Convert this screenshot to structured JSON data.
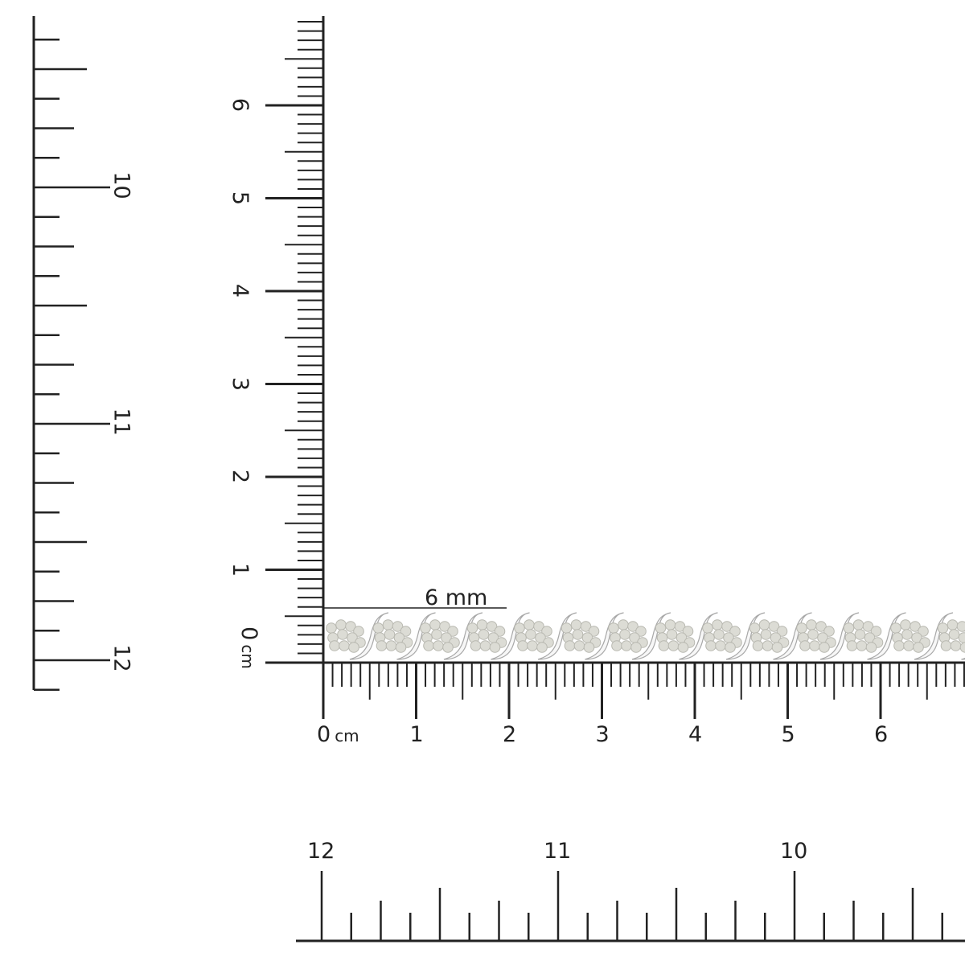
{
  "product": "diamond S-link tennis bracelet",
  "measurement": {
    "width_label": "6 mm"
  },
  "cm_ruler_horizontal": {
    "labels": [
      "0",
      "1",
      "2",
      "3",
      "4",
      "5",
      "6"
    ],
    "unit": "cm"
  },
  "cm_ruler_vertical": {
    "labels": [
      "0",
      "1",
      "2",
      "3",
      "4",
      "5",
      "6"
    ],
    "unit": "cm"
  },
  "inch_ruler_left": {
    "labels": [
      "10",
      "11",
      "12"
    ]
  },
  "inch_ruler_bottom": {
    "labels": [
      "12",
      "11",
      "10"
    ]
  },
  "colors": {
    "ruler": "#222222",
    "background": "#ffffff",
    "diamond": "#d8d8d2",
    "metal": "#f4f4f4"
  }
}
